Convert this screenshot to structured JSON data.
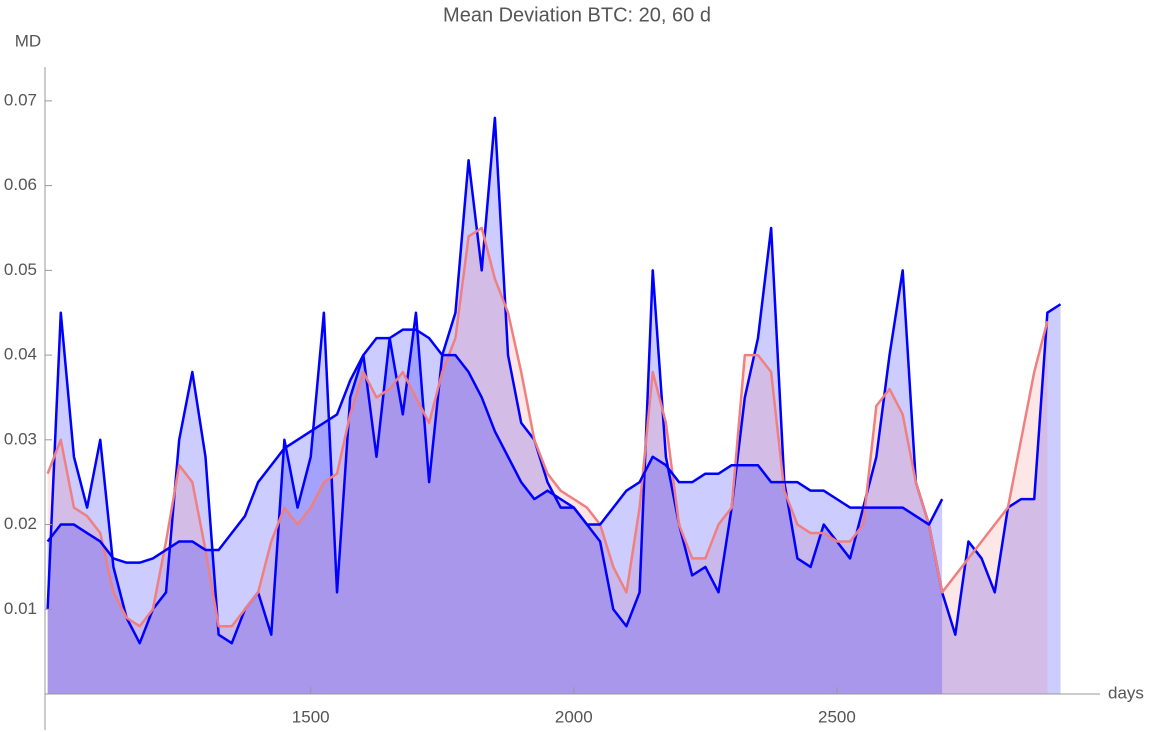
{
  "chart_data": {
    "type": "line",
    "title": "Mean Deviation BTC: 20, 60 d",
    "xlabel": "days",
    "ylabel": "MD",
    "x": [
      1000,
      1025,
      1050,
      1075,
      1100,
      1125,
      1150,
      1175,
      1200,
      1225,
      1250,
      1275,
      1300,
      1325,
      1350,
      1375,
      1400,
      1425,
      1450,
      1475,
      1500,
      1525,
      1550,
      1575,
      1600,
      1625,
      1650,
      1675,
      1700,
      1725,
      1750,
      1775,
      1800,
      1825,
      1850,
      1875,
      1900,
      1925,
      1950,
      1975,
      2000,
      2025,
      2050,
      2075,
      2100,
      2125,
      2150,
      2175,
      2200,
      2225,
      2250,
      2275,
      2300,
      2325,
      2350,
      2375,
      2400,
      2425,
      2450,
      2475,
      2500,
      2525,
      2550,
      2575,
      2600,
      2625,
      2650,
      2675,
      2700,
      2725,
      2750,
      2775,
      2800,
      2825,
      2850,
      2875,
      2900,
      2925
    ],
    "series": [
      {
        "color": "#0000ff",
        "values": [
          0.01,
          0.045,
          0.028,
          0.022,
          0.03,
          0.015,
          0.009,
          0.006,
          0.01,
          0.012,
          0.03,
          0.038,
          0.028,
          0.007,
          0.006,
          0.01,
          0.012,
          0.007,
          0.03,
          0.022,
          0.028,
          0.045,
          0.012,
          0.035,
          0.04,
          0.028,
          0.042,
          0.033,
          0.045,
          0.025,
          0.04,
          0.045,
          0.063,
          0.05,
          0.068,
          0.04,
          0.032,
          0.03,
          0.025,
          0.022,
          0.022,
          0.02,
          0.018,
          0.01,
          0.008,
          0.012,
          0.05,
          0.028,
          0.02,
          0.014,
          0.015,
          0.012,
          0.022,
          0.035,
          0.042,
          0.055,
          0.025,
          0.016,
          0.015,
          0.02,
          0.018,
          0.016,
          0.022,
          0.028,
          0.04,
          0.05,
          0.025,
          0.02,
          0.012,
          0.007,
          0.018,
          0.016,
          0.012,
          0.022,
          0.023,
          0.023,
          0.045,
          0.046
        ]
      },
      {
        "color": "#f08080",
        "values": [
          0.026,
          0.03,
          0.022,
          0.021,
          0.019,
          0.012,
          0.009,
          0.008,
          0.01,
          0.018,
          0.027,
          0.025,
          0.017,
          0.008,
          0.008,
          0.01,
          0.012,
          0.018,
          0.022,
          0.02,
          0.022,
          0.025,
          0.026,
          0.033,
          0.038,
          0.035,
          0.036,
          0.038,
          0.035,
          0.032,
          0.038,
          0.042,
          0.054,
          0.055,
          0.049,
          0.045,
          0.038,
          0.03,
          0.026,
          0.024,
          0.023,
          0.022,
          0.02,
          0.015,
          0.012,
          0.022,
          0.038,
          0.032,
          0.02,
          0.016,
          0.016,
          0.02,
          0.022,
          0.04,
          0.04,
          0.038,
          0.024,
          0.02,
          0.019,
          0.019,
          0.018,
          0.018,
          0.02,
          0.034,
          0.036,
          0.033,
          0.025,
          0.02,
          0.012,
          0.014,
          0.016,
          0.018,
          0.02,
          0.022,
          0.03,
          0.038,
          0.044,
          null
        ]
      },
      {
        "color": "#0000ff",
        "values": [
          0.018,
          0.02,
          0.02,
          0.019,
          0.018,
          0.016,
          0.0155,
          0.0155,
          0.016,
          0.017,
          0.018,
          0.018,
          0.017,
          0.017,
          0.019,
          0.021,
          0.025,
          0.027,
          0.029,
          0.03,
          0.031,
          0.032,
          0.033,
          0.037,
          0.04,
          0.042,
          0.042,
          0.043,
          0.043,
          0.042,
          0.04,
          0.04,
          0.038,
          0.035,
          0.031,
          0.028,
          0.025,
          0.023,
          0.024,
          0.023,
          0.022,
          0.02,
          0.02,
          0.022,
          0.024,
          0.025,
          0.028,
          0.027,
          0.025,
          0.025,
          0.026,
          0.026,
          0.027,
          0.027,
          0.027,
          0.025,
          0.025,
          0.025,
          0.024,
          0.024,
          0.023,
          0.022,
          0.022,
          0.022,
          0.022,
          0.022,
          0.021,
          0.02,
          0.023,
          null,
          null,
          null,
          null,
          null,
          null,
          null,
          null,
          null
        ]
      }
    ],
    "xlim": [
      995,
      3000
    ],
    "xticks": [
      1500,
      2000,
      2500
    ],
    "ylim": [
      0,
      0.074
    ],
    "yticks": [
      0.01,
      0.02,
      0.03,
      0.04,
      0.05,
      0.06,
      0.07
    ],
    "filled": true
  }
}
